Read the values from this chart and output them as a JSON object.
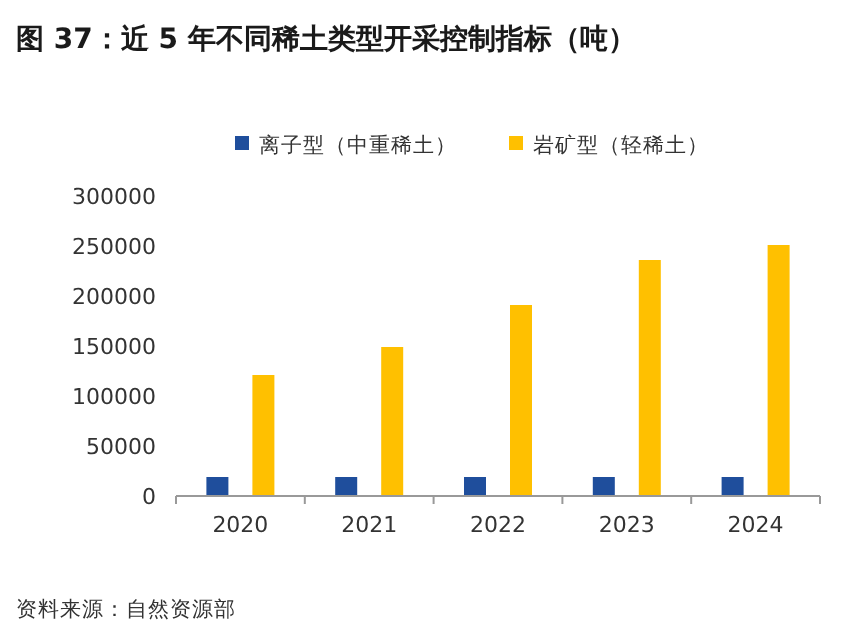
{
  "chart_data": {
    "type": "bar",
    "title": "图 37：近 5 年不同稀土类型开采控制指标（吨）",
    "categories": [
      "2020",
      "2021",
      "2022",
      "2023",
      "2024"
    ],
    "series": [
      {
        "name": "离子型（中重稀土）",
        "color": "#1f4e9c",
        "values": [
          19000,
          19000,
          19000,
          19000,
          19000
        ]
      },
      {
        "name": "岩矿型（轻稀土）",
        "color": "#ffc000",
        "values": [
          121000,
          149000,
          191000,
          236000,
          251000
        ]
      }
    ],
    "ylim": [
      0,
      300000
    ],
    "yticks": [
      0,
      50000,
      100000,
      150000,
      200000,
      250000,
      300000
    ],
    "legend": "top",
    "grid": false,
    "annotations": [
      "资料来源：自然资源部"
    ]
  }
}
